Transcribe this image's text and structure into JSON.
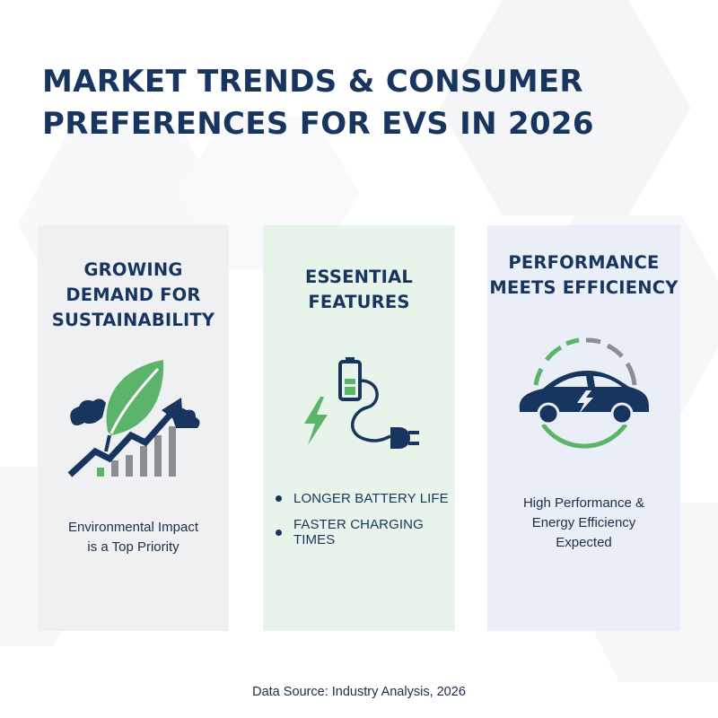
{
  "title": {
    "line1": "Market Trends & Consumer",
    "line2": "Preferences for EVs in 2026"
  },
  "cards": [
    {
      "heading": "Growing\nDemand for\nSustainability",
      "icon": "leaf-growth-chart-icon",
      "caption_lines": [
        "Environmental Impact",
        "is a Top Priority"
      ],
      "background": "#eef0f2"
    },
    {
      "heading": "Essential\nFeatures",
      "icon": "battery-charging-plug-icon",
      "features": [
        "Longer Battery Life",
        "Faster Charging Times"
      ],
      "background": "#e8f3ea"
    },
    {
      "heading": "Performance\nMeets Efficiency",
      "icon": "electric-car-gauge-icon",
      "caption_lines": [
        "High Performance &",
        "Energy Efficiency",
        "Expected"
      ],
      "background": "#e9eef7"
    }
  ],
  "source": "Data Source: Industry Analysis, 2026",
  "colors": {
    "navy": "#17355e",
    "green": "#5cb46a",
    "gray": "#8a8d91"
  }
}
